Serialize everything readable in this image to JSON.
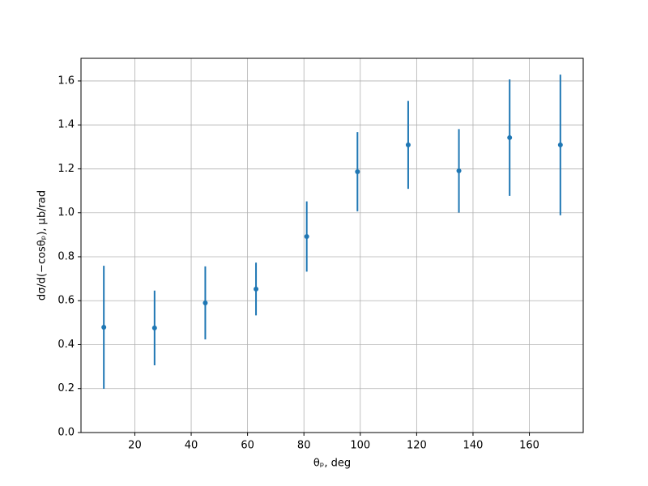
{
  "chart_data": {
    "type": "errorbar",
    "xlabel": "θₚ, deg",
    "ylabel": "dσ/d(−cosθₚ), μb/rad",
    "x": [
      9,
      27,
      45,
      63,
      81,
      99,
      117,
      135,
      153,
      171
    ],
    "series": [
      {
        "color": "#1f77b4",
        "values": [
          0.479,
          0.476,
          0.59,
          0.653,
          0.892,
          1.187,
          1.309,
          1.191,
          1.342,
          1.309
        ],
        "errors": [
          0.28,
          0.17,
          0.166,
          0.12,
          0.16,
          0.18,
          0.2,
          0.19,
          0.265,
          0.32
        ]
      }
    ],
    "xlim": [
      0.9,
      179.1
    ],
    "xticks": [
      20,
      40,
      60,
      80,
      100,
      120,
      140,
      160
    ],
    "ylim": [
      0,
      1.703
    ],
    "yticks": [
      {
        "value": 0,
        "label": "0.0"
      },
      {
        "value": 0.2,
        "label": "0.2"
      },
      {
        "value": 0.4,
        "label": "0.4"
      },
      {
        "value": 0.6,
        "label": "0.6"
      },
      {
        "value": 0.8,
        "label": "0.8"
      },
      {
        "value": 1.0,
        "label": "1.0"
      },
      {
        "value": 1.2,
        "label": "1.2"
      },
      {
        "value": 1.4,
        "label": "1.4"
      },
      {
        "value": 1.6,
        "label": "1.6"
      }
    ],
    "grid": true
  }
}
